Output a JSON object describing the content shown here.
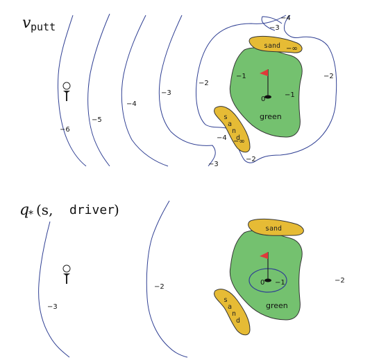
{
  "colors": {
    "contour": "#2f3f93",
    "green": "#74c16f",
    "sand": "#e6bb35",
    "flag": "#e03a3a",
    "outline": "#333333"
  },
  "top_panel": {
    "title_symbol": "v",
    "title_subscript": "putt",
    "green_label": "green",
    "hole_value": "0",
    "sand_upper": {
      "letters": "sand",
      "value": "−∞"
    },
    "sand_lower": {
      "letters": [
        "s",
        "a",
        "n",
        "d"
      ],
      "value": "−∞"
    },
    "contour_labels": {
      "m6": "−6",
      "m5": "−5",
      "m4_a": "−4",
      "m3_a": "−3",
      "m2_a": "−2",
      "m1_a": "−1",
      "m1_b": "−1",
      "m2_b": "−2",
      "m3_top": "−3",
      "m4_top": "−4",
      "m4_b": "−4",
      "m3_b": "−3",
      "m2_c": "−2"
    }
  },
  "bottom_panel": {
    "title_q": "q",
    "title_star": "*",
    "title_open": "(s, ",
    "title_action": "driver",
    "title_close": ")",
    "green_label": "green",
    "hole_value": "0",
    "sand_upper": {
      "letters": "sand"
    },
    "sand_lower": {
      "letters": [
        "s",
        "a",
        "n",
        "d"
      ]
    },
    "contour_labels": {
      "m3": "−3",
      "m2_left": "−2",
      "m1": "−1",
      "m2_right": "−2"
    }
  }
}
